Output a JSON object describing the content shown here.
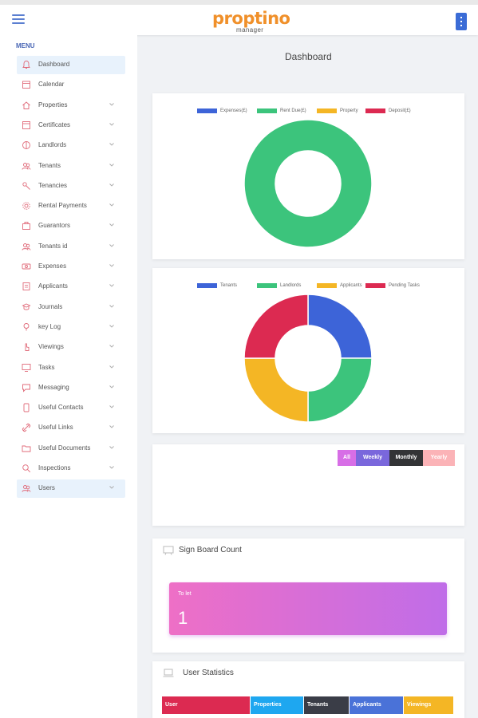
{
  "header": {
    "logo_main": "proptino",
    "logo_sub": "manager"
  },
  "sidebar": {
    "menu_label": "MENU",
    "items": [
      {
        "label": "Dashboard",
        "icon": "bell-icon",
        "active": true
      },
      {
        "label": "Calendar",
        "icon": "calendar-icon"
      },
      {
        "label": "Properties",
        "icon": "home-icon"
      },
      {
        "label": "Certificates",
        "icon": "certificate-icon"
      },
      {
        "label": "Landlords",
        "icon": "landlord-icon"
      },
      {
        "label": "Tenants",
        "icon": "people-icon"
      },
      {
        "label": "Tenancies",
        "icon": "key-icon"
      },
      {
        "label": "Rental Payments",
        "icon": "gear-icon"
      },
      {
        "label": "Guarantors",
        "icon": "briefcase-icon"
      },
      {
        "label": "Tenants id",
        "icon": "people-icon"
      },
      {
        "label": "Expenses",
        "icon": "money-icon"
      },
      {
        "label": "Applicants",
        "icon": "document-icon"
      },
      {
        "label": "Journals",
        "icon": "journal-icon"
      },
      {
        "label": "key Log",
        "icon": "bulb-icon"
      },
      {
        "label": "Viewings",
        "icon": "finger-icon"
      },
      {
        "label": "Tasks",
        "icon": "monitor-icon"
      },
      {
        "label": "Messaging",
        "icon": "message-icon"
      },
      {
        "label": "Useful Contacts",
        "icon": "phone-icon"
      },
      {
        "label": "Useful Links",
        "icon": "link-icon"
      },
      {
        "label": "Useful Documents",
        "icon": "folder-icon"
      },
      {
        "label": "Inspections",
        "icon": "search-icon"
      },
      {
        "label": "Users",
        "icon": "users-icon",
        "highlight": true
      }
    ]
  },
  "main": {
    "page_title": "Dashboard",
    "chart1": {
      "legend": [
        {
          "label": "Expenses(£)",
          "color": "#3d64d8"
        },
        {
          "label": "Rent Due(£)",
          "color": "#3cc47c"
        },
        {
          "label": "Property",
          "color": "#f4b625"
        },
        {
          "label": "Deposit(£)",
          "color": "#dc2a51"
        }
      ]
    },
    "chart2": {
      "legend": [
        {
          "label": "Tenants",
          "color": "#3d64d8"
        },
        {
          "label": "Landlords",
          "color": "#3cc47c"
        },
        {
          "label": "Applicants",
          "color": "#f4b625"
        },
        {
          "label": "Pending Tasks",
          "color": "#dc2a51"
        }
      ]
    },
    "filters": {
      "all": "All",
      "weekly": "Weekly",
      "monthly": "Monthly",
      "yearly": "Yearly"
    },
    "signboard": {
      "title": "Sign Board Count",
      "tolet_label": "To let",
      "tolet_value": "1"
    },
    "user_stats": {
      "title": "User Statistics",
      "columns": [
        {
          "label": "User",
          "color": "#dc2a51"
        },
        {
          "label": "Properties",
          "color": "#1ea7f0"
        },
        {
          "label": "Tenants",
          "color": "#3a3d47"
        },
        {
          "label": "Applicants",
          "color": "#4a72d8"
        },
        {
          "label": "Viewings",
          "color": "#f4b625"
        }
      ]
    }
  },
  "chart_data": [
    {
      "type": "pie",
      "categories": [
        "Expenses(£)",
        "Rent Due(£)",
        "Property",
        "Deposit(£)"
      ],
      "values": [
        0,
        100,
        0,
        0
      ],
      "donut": true,
      "legend": "top"
    },
    {
      "type": "pie",
      "categories": [
        "Tenants",
        "Landlords",
        "Applicants",
        "Pending Tasks"
      ],
      "values": [
        1,
        1,
        1,
        1
      ],
      "donut": true,
      "legend": "top"
    }
  ]
}
